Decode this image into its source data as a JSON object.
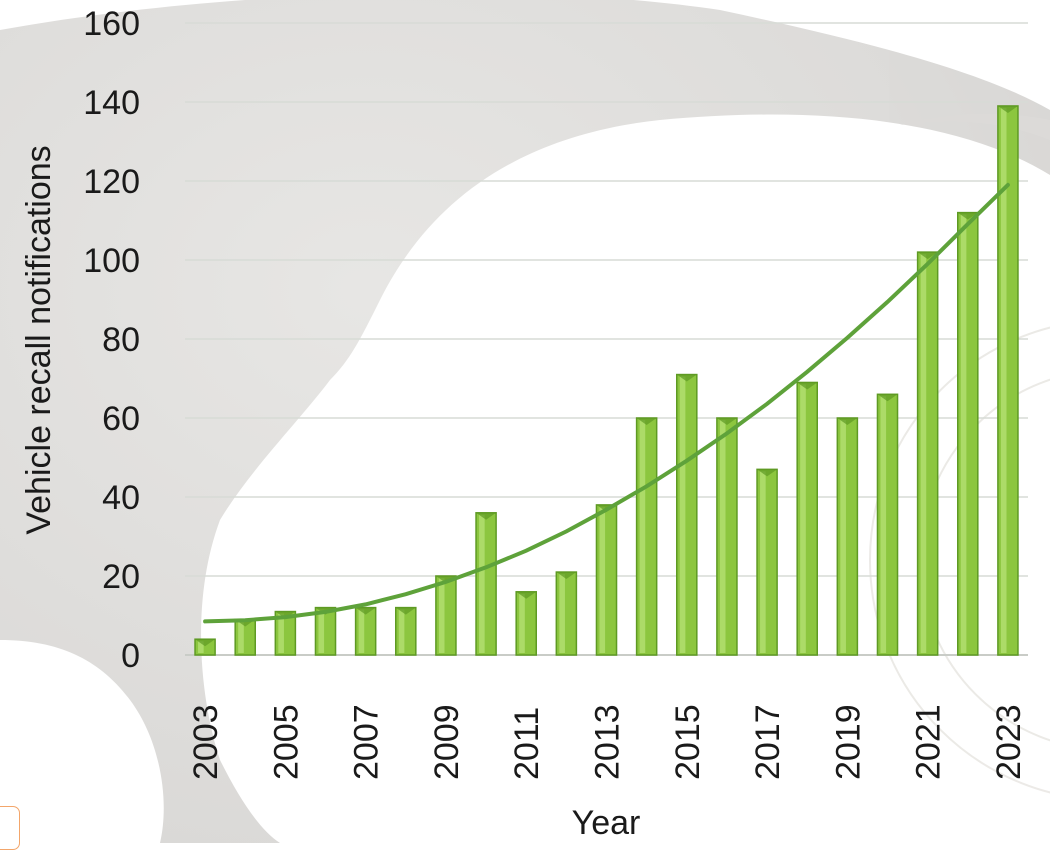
{
  "chart_data": {
    "type": "bar",
    "xlabel": "Year",
    "ylabel": "Vehicle recall notifications",
    "ylim": [
      0,
      160
    ],
    "yticks": [
      0,
      20,
      40,
      60,
      80,
      100,
      120,
      140,
      160
    ],
    "grid": true,
    "legend": "none",
    "categories": [
      "2003",
      "2004",
      "2005",
      "2006",
      "2007",
      "2008",
      "2009",
      "2010",
      "2011",
      "2012",
      "2013",
      "2014",
      "2015",
      "2016",
      "2017",
      "2018",
      "2019",
      "2020",
      "2021",
      "2022",
      "2023"
    ],
    "x_tick_labels": [
      "2003",
      "2005",
      "2007",
      "2009",
      "2011",
      "2013",
      "2015",
      "2017",
      "2019",
      "2021",
      "2023"
    ],
    "values": [
      4,
      9,
      11,
      12,
      12,
      12,
      20,
      36,
      16,
      21,
      38,
      60,
      71,
      60,
      47,
      69,
      60,
      66,
      102,
      112,
      139
    ],
    "trendline": {
      "type": "polynomial",
      "values": [
        8.5,
        8.8,
        9.6,
        10.9,
        12.8,
        15.4,
        18.5,
        22.2,
        26.4,
        31.3,
        36.8,
        42.7,
        49.2,
        56.1,
        63.6,
        71.7,
        80.3,
        89.4,
        99.0,
        109.1,
        119.0
      ]
    },
    "colors": {
      "bar": "#8cc63f",
      "bar_dark": "#5e9a23",
      "bar_light": "#c7ec8a",
      "trendline": "#5ea23a",
      "grid": "#d7dbd6"
    }
  }
}
